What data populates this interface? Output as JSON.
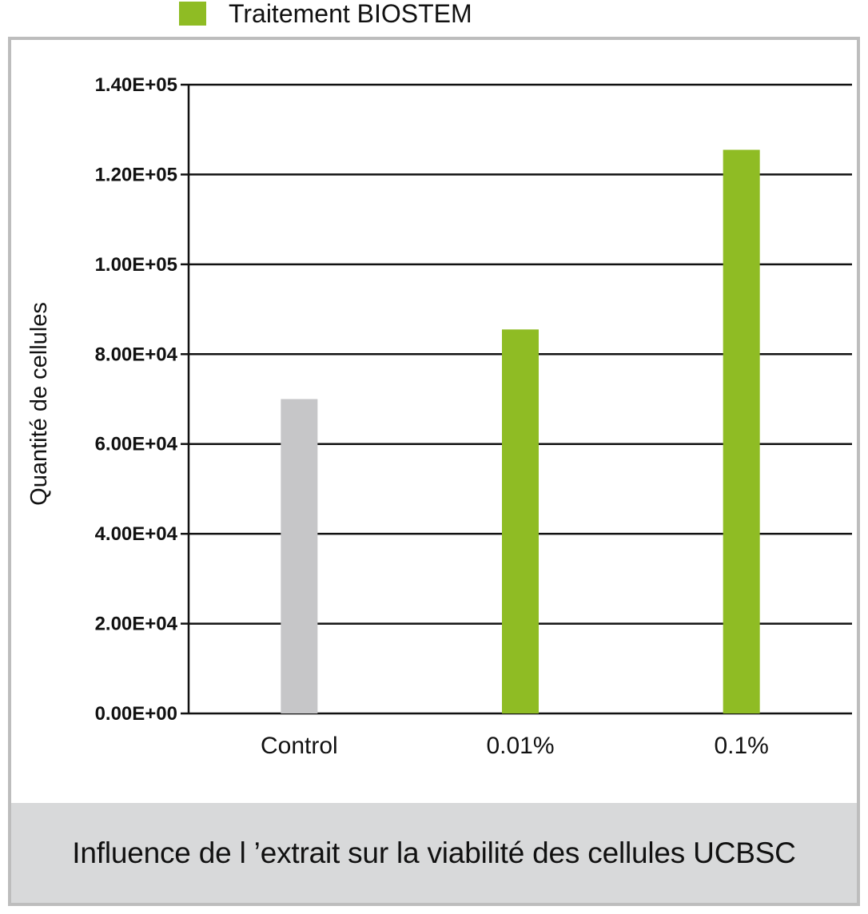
{
  "legend": {
    "label": "Traitement BIOSTEM",
    "color": "#8fbc24"
  },
  "caption": "Influence de l ’extrait sur la viabilité des cellules UCBSC",
  "chart_data": {
    "type": "bar",
    "categories": [
      "Control",
      "0.01%",
      "0.1%"
    ],
    "values": [
      70000,
      85500,
      125500
    ],
    "colors": [
      "#c6c6c8",
      "#8fbc24",
      "#8fbc24"
    ],
    "ylabel": "Quantité de cellules",
    "ylim": [
      0,
      140000
    ],
    "yticks": [
      0,
      20000,
      40000,
      60000,
      80000,
      100000,
      120000,
      140000
    ],
    "ytick_labels": [
      "0.00E+00",
      "2.00E+04",
      "4.00E+04",
      "6.00E+04",
      "8.00E+04",
      "1.00E+05",
      "1.20E+05",
      "1.40E+05"
    ],
    "legend_position": "top",
    "grid": true
  }
}
